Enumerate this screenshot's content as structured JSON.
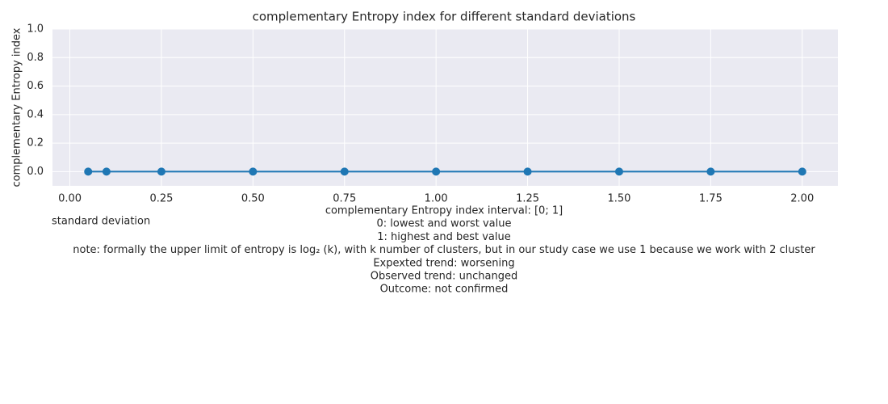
{
  "chart_data": {
    "type": "line",
    "title": "complementary Entropy index for different standard deviations",
    "xlabel": "standard deviation",
    "ylabel": "complementary Entropy index",
    "x": [
      0.05,
      0.1,
      0.25,
      0.5,
      0.75,
      1.0,
      1.25,
      1.5,
      1.75,
      2.0
    ],
    "series": [
      {
        "name": "complementary Entropy index",
        "color": "#1f77b4",
        "values": [
          0,
          0,
          0,
          0,
          0,
          0,
          0,
          0,
          0,
          0
        ]
      }
    ],
    "xlim": [
      -0.0475,
      2.0975
    ],
    "xticks": [
      {
        "value": 0,
        "label": "0.00"
      },
      {
        "value": 0.25,
        "label": "0.25"
      },
      {
        "value": 0.5,
        "label": "0.50"
      },
      {
        "value": 0.75,
        "label": "0.75"
      },
      {
        "value": 1,
        "label": "1.00"
      },
      {
        "value": 1.25,
        "label": "1.25"
      },
      {
        "value": 1.5,
        "label": "1.50"
      },
      {
        "value": 1.75,
        "label": "1.75"
      },
      {
        "value": 2,
        "label": "2.00"
      }
    ],
    "ylim": [
      -0.1,
      1.0
    ],
    "yticks": [
      {
        "value": 0,
        "label": "0.0"
      },
      0.2,
      0.4,
      0.6,
      0.8,
      {
        "value": 1,
        "label": "1.0"
      }
    ],
    "grid": true,
    "annotations": [
      "complementary Entropy index interval: [0; 1]",
      "0: lowest and worst value",
      "1: highest and best value",
      "note: formally the upper limit of entropy is log₂ (k), with k number of clusters, but in our study case we use 1 because we work with 2 cluster",
      "Expexted trend: worsening",
      "Observed trend: unchanged",
      "Outcome: not confirmed"
    ]
  }
}
